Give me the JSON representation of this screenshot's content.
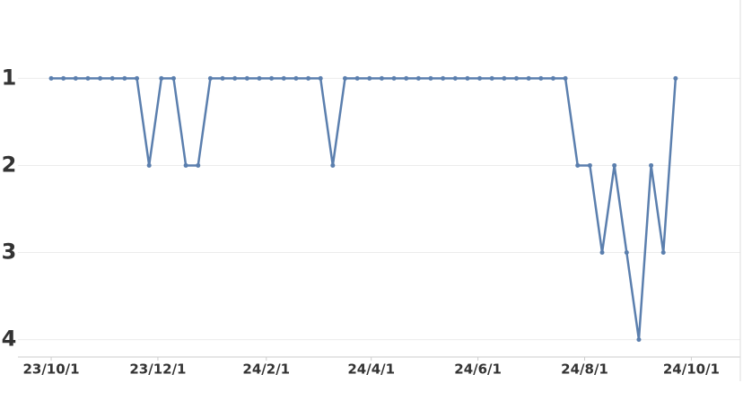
{
  "chart_data": {
    "type": "line",
    "x": [
      "23/10/1",
      "23/10/8",
      "23/10/15",
      "23/10/22",
      "23/10/29",
      "23/11/5",
      "23/11/12",
      "23/11/19",
      "23/11/26",
      "23/12/3",
      "23/12/10",
      "23/12/17",
      "23/12/24",
      "23/12/31",
      "24/1/7",
      "24/1/14",
      "24/1/21",
      "24/1/28",
      "24/2/4",
      "24/2/11",
      "24/2/18",
      "24/2/25",
      "24/3/3",
      "24/3/10",
      "24/3/17",
      "24/3/24",
      "24/3/31",
      "24/4/7",
      "24/4/14",
      "24/4/21",
      "24/4/28",
      "24/5/5",
      "24/5/12",
      "24/5/19",
      "24/5/26",
      "24/6/2",
      "24/6/9",
      "24/6/16",
      "24/6/23",
      "24/6/30",
      "24/7/7",
      "24/7/14",
      "24/7/21",
      "24/7/28",
      "24/8/4",
      "24/8/11",
      "24/8/18",
      "24/8/25",
      "24/9/1",
      "24/9/8",
      "24/9/15",
      "24/9/22"
    ],
    "series": [
      {
        "color": "#5b7fae",
        "values": [
          1,
          1,
          1,
          1,
          1,
          1,
          1,
          1,
          2,
          1,
          1,
          2,
          2,
          1,
          1,
          1,
          1,
          1,
          1,
          1,
          1,
          1,
          1,
          2,
          1,
          1,
          1,
          1,
          1,
          1,
          1,
          1,
          1,
          1,
          1,
          1,
          1,
          1,
          1,
          1,
          1,
          1,
          1,
          2,
          2,
          3,
          2,
          3,
          4,
          2,
          3,
          1
        ]
      }
    ],
    "xlim": [
      "23/9/12",
      "24/10/29"
    ],
    "xticks": [
      "23/10/1",
      "23/12/1",
      "24/2/1",
      "24/4/1",
      "24/6/1",
      "24/8/1",
      "24/10/1"
    ],
    "ylim": [
      4.2,
      0.1
    ],
    "yticks": [
      1,
      2,
      3,
      4
    ],
    "grid": true
  }
}
